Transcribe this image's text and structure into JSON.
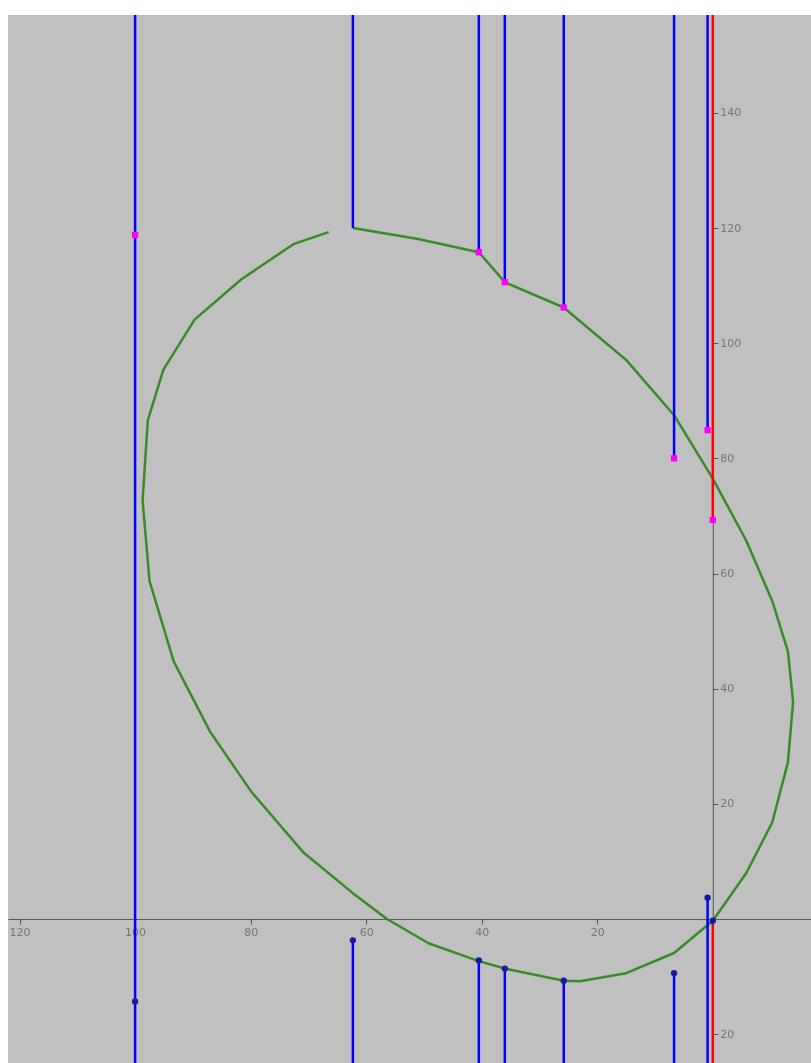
{
  "chart_data": {
    "type": "line",
    "xlim": [
      122,
      -17
    ],
    "ylim": [
      -25,
      157
    ],
    "xticks": [
      120,
      100,
      80,
      60,
      40,
      20,
      {
        "value": 0,
        "label": null
      }
    ],
    "yticks": [
      {
        "value": -20,
        "label": "20"
      },
      20,
      40,
      60,
      80,
      100,
      120,
      140
    ],
    "grid": false,
    "series": [
      {
        "color": "#3a8a2a",
        "x": [
          62.3,
          51,
          40.5,
          36,
          25.8,
          15,
          6.7,
          0,
          -5.8,
          -10.3,
          -13,
          -13.9,
          -13,
          -10.3,
          -5.8,
          0,
          6.7,
          15,
          23,
          25.8,
          36,
          40.5,
          49.2,
          56.4,
          62.3,
          70.8,
          79.8,
          87,
          93.3,
          97.5,
          98.7,
          97.8,
          95.1,
          89.7,
          81.6,
          72.6,
          66.5
        ],
        "values": [
          120,
          118.1,
          115.8,
          110.6,
          106.2,
          97.1,
          87.5,
          76.5,
          65.7,
          55.2,
          46.5,
          37.7,
          27.2,
          16.8,
          8,
          -0.3,
          -5.9,
          -9.4,
          -10.8,
          -10.7,
          -8.6,
          -7.3,
          -4.2,
          0,
          4.5,
          11.5,
          22,
          32.5,
          44.7,
          58.7,
          72.7,
          86.6,
          95.4,
          104.1,
          111.1,
          117.2,
          119.3
        ]
      },
      {
        "color": "#0000ff",
        "x": [
          100,
          100
        ],
        "values": [
          157,
          -25
        ]
      },
      {
        "color": "#0000ff",
        "x": [
          62.3,
          62.3
        ],
        "values": [
          157,
          120
        ]
      },
      {
        "color": "#0000ff",
        "x": [
          62.3,
          62.3
        ],
        "values": [
          -3.7,
          -25
        ]
      },
      {
        "color": "#0000ff",
        "x": [
          40.5,
          40.5
        ],
        "values": [
          157,
          115.8
        ]
      },
      {
        "color": "#0000ff",
        "x": [
          40.5,
          40.5
        ],
        "values": [
          -7.2,
          -25
        ]
      },
      {
        "color": "#0000ff",
        "x": [
          36,
          36
        ],
        "values": [
          157,
          110.6
        ]
      },
      {
        "color": "#0000ff",
        "x": [
          36,
          36
        ],
        "values": [
          -8.6,
          -25
        ]
      },
      {
        "color": "#0000ff",
        "x": [
          25.8,
          25.8
        ],
        "values": [
          157,
          106.2
        ]
      },
      {
        "color": "#0000ff",
        "x": [
          25.8,
          25.8
        ],
        "values": [
          -10.7,
          -25
        ]
      },
      {
        "color": "#0000ff",
        "x": [
          6.7,
          6.7
        ],
        "values": [
          157,
          80
        ]
      },
      {
        "color": "#0000ff",
        "x": [
          6.7,
          6.7
        ],
        "values": [
          -9.4,
          -25
        ]
      },
      {
        "color": "#0000ff",
        "x": [
          0.9,
          0.9
        ],
        "values": [
          157,
          84.9
        ]
      },
      {
        "color": "#0000ff",
        "x": [
          0.9,
          0.9
        ],
        "values": [
          3.7,
          -25
        ]
      },
      {
        "color": "#ff0000",
        "x": [
          0,
          0
        ],
        "values": [
          157,
          69.3
        ]
      },
      {
        "color": "#ff0000",
        "x": [
          0,
          0
        ],
        "values": [
          -0.3,
          -25
        ]
      },
      {
        "type": "scatter",
        "marker": "square",
        "color": "#ff00ff",
        "x": [
          100,
          40.5,
          36,
          25.8,
          6.7,
          0.9,
          0
        ],
        "values": [
          118.8,
          115.8,
          110.6,
          106.2,
          80,
          84.9,
          69.3
        ]
      },
      {
        "type": "scatter",
        "marker": "circle",
        "color": "#1a1aa0",
        "x": [
          100,
          62.3,
          40.5,
          36,
          25.8,
          6.7,
          0.9,
          0
        ],
        "values": [
          -14.3,
          -3.7,
          -7.2,
          -8.6,
          -10.7,
          -9.4,
          3.7,
          -0.3
        ]
      }
    ]
  }
}
